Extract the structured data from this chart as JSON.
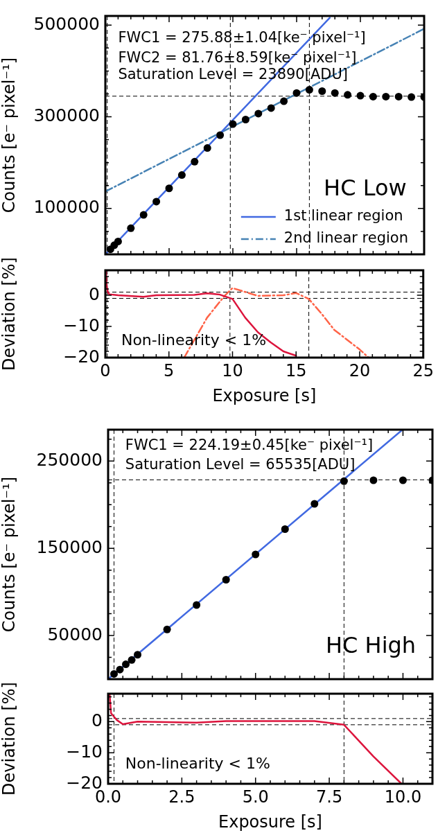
{
  "chart_data": [
    {
      "type": "scatter",
      "ylabel": "Counts [e⁻ pixel⁻¹]",
      "xlim": [
        0,
        25
      ],
      "ylim": [
        0,
        520000
      ],
      "tick_labels": "y",
      "legend": "bottom right",
      "xticks": [
        0,
        {
          "value": 1,
          "label": null
        },
        {
          "value": 2,
          "label": null
        },
        {
          "value": 3,
          "label": null
        },
        {
          "value": 4,
          "label": null
        },
        5,
        {
          "value": 6,
          "label": null
        },
        {
          "value": 7,
          "label": null
        },
        {
          "value": 8,
          "label": null
        },
        {
          "value": 9,
          "label": null
        },
        10,
        {
          "value": 11,
          "label": null
        },
        {
          "value": 12,
          "label": null
        },
        {
          "value": 13,
          "label": null
        },
        {
          "value": 14,
          "label": null
        },
        15,
        {
          "value": 16,
          "label": null
        },
        {
          "value": 17,
          "label": null
        },
        {
          "value": 18,
          "label": null
        },
        {
          "value": 19,
          "label": null
        },
        20,
        {
          "value": 21,
          "label": null
        },
        {
          "value": 22,
          "label": null
        },
        {
          "value": 23,
          "label": null
        },
        {
          "value": 24,
          "label": null
        },
        25
      ],
      "yticks": [
        {
          "value": 50000,
          "label": null
        },
        100000,
        {
          "value": 150000,
          "label": null
        },
        {
          "value": 200000,
          "label": null
        },
        {
          "value": 250000,
          "label": null
        },
        300000,
        {
          "value": 350000,
          "label": null
        },
        {
          "value": 400000,
          "label": null
        },
        {
          "value": 450000,
          "label": null
        },
        500000
      ],
      "series": [
        {
          "marker": "circle",
          "color": "#000000",
          "x": [
            0.4,
            0.7,
            1,
            2,
            3,
            4,
            5,
            6,
            7,
            8,
            9,
            10,
            11,
            12,
            13,
            14,
            15,
            16,
            17,
            18,
            19,
            20,
            21,
            22,
            23,
            24,
            25
          ],
          "values": [
            11000,
            20000,
            28000,
            57000,
            86000,
            115000,
            144000,
            173000,
            202000,
            232000,
            260000,
            284000,
            294000,
            307000,
            319000,
            334000,
            352000,
            359000,
            356000,
            352000,
            348000,
            346000,
            344000,
            344000,
            344000,
            343000,
            343000
          ]
        },
        {
          "type": "line",
          "name": "1st linear region",
          "marker": "none",
          "line_style": "solid",
          "color": "#4169e1",
          "x": [
            0,
            17.6
          ],
          "values": [
            0,
            516000
          ]
        },
        {
          "type": "line",
          "name": "2nd linear region",
          "marker": "none",
          "line_style": "dashdot",
          "color": "#4682b4",
          "x": [
            0,
            25
          ],
          "values": [
            137000,
            492000
          ]
        }
      ],
      "ref_lines": [
        {
          "axis": "x",
          "value": 0.15,
          "color": "#000000",
          "line_style": "dashed"
        },
        {
          "axis": "x",
          "value": 9.8,
          "color": "#000000",
          "line_style": "dashed"
        },
        {
          "axis": "x",
          "value": 16,
          "color": "#000000",
          "line_style": "dashed"
        },
        {
          "axis": "y",
          "value": 345000,
          "color": "#000000",
          "line_style": "dashed"
        }
      ],
      "annotations": [
        "FWC1 = 275.88±1.04[ke⁻ pixel⁻¹]",
        "FWC2 = 81.76±8.59[ke⁻ pixel⁻¹]",
        "Saturation Level = 23890[ADU]",
        "HC Low"
      ]
    },
    {
      "type": "line",
      "xlabel": "Exposure [s]",
      "ylabel": "Deviation [%]",
      "xlim": [
        0,
        25
      ],
      "ylim": [
        -20,
        8
      ],
      "xticks": [
        0,
        {
          "value": 1,
          "label": null
        },
        {
          "value": 2,
          "label": null
        },
        {
          "value": 3,
          "label": null
        },
        {
          "value": 4,
          "label": null
        },
        5,
        {
          "value": 6,
          "label": null
        },
        {
          "value": 7,
          "label": null
        },
        {
          "value": 8,
          "label": null
        },
        {
          "value": 9,
          "label": null
        },
        10,
        {
          "value": 11,
          "label": null
        },
        {
          "value": 12,
          "label": null
        },
        {
          "value": 13,
          "label": null
        },
        {
          "value": 14,
          "label": null
        },
        15,
        {
          "value": 16,
          "label": null
        },
        {
          "value": 17,
          "label": null
        },
        {
          "value": 18,
          "label": null
        },
        {
          "value": 19,
          "label": null
        },
        20,
        {
          "value": 21,
          "label": null
        },
        {
          "value": 22,
          "label": null
        },
        {
          "value": 23,
          "label": null
        },
        {
          "value": 24,
          "label": null
        },
        25
      ],
      "yticks": [
        {
          "value": -20,
          "label": "−20"
        },
        {
          "value": -18,
          "label": null
        },
        {
          "value": -16,
          "label": null
        },
        {
          "value": -14,
          "label": null
        },
        {
          "value": -12,
          "label": null
        },
        {
          "value": -10,
          "label": "−10"
        },
        {
          "value": -8,
          "label": null
        },
        {
          "value": -6,
          "label": null
        },
        {
          "value": -4,
          "label": null
        },
        {
          "value": -2,
          "label": null
        },
        0,
        {
          "value": 2,
          "label": null
        },
        {
          "value": 4,
          "label": null
        },
        {
          "value": 6,
          "label": null
        },
        {
          "value": 8,
          "label": null
        }
      ],
      "series": [
        {
          "marker": "none",
          "line_style": "solid",
          "color": "#dc143c",
          "x": [
            0.05,
            0.1,
            0.2,
            0.3,
            0.5,
            1,
            3,
            4,
            7,
            8,
            9,
            10,
            11,
            12,
            13,
            14,
            15
          ],
          "values": [
            8,
            3,
            1,
            0.3,
            0.2,
            0,
            -0.5,
            0,
            0.1,
            0.6,
            0.2,
            -1.2,
            -7.2,
            -11.9,
            -15.1,
            -18,
            -19.4
          ]
        },
        {
          "marker": "none",
          "line_style": "dashdot",
          "color": "#ff6347",
          "x": [
            6.2,
            8,
            9.35,
            10,
            12,
            14,
            15,
            16,
            17,
            18,
            20,
            20.7
          ],
          "values": [
            -20,
            -7.2,
            -0.3,
            2.3,
            -0.2,
            0,
            0.7,
            -1.2,
            -5.9,
            -11.1,
            -17.4,
            -20
          ]
        }
      ],
      "ref_lines": [
        {
          "axis": "x",
          "value": 0.15,
          "color": "#000000",
          "line_style": "dashed"
        },
        {
          "axis": "x",
          "value": 9.8,
          "color": "#000000",
          "line_style": "dashed"
        },
        {
          "axis": "x",
          "value": 16,
          "color": "#000000",
          "line_style": "dashed"
        },
        {
          "axis": "y",
          "value": 1,
          "color": "#000000",
          "line_style": "dashed"
        },
        {
          "axis": "y",
          "value": -1,
          "color": "#000000",
          "line_style": "dashed"
        }
      ],
      "annotations": [
        "Non-linearity < 1%"
      ]
    },
    {
      "type": "scatter",
      "ylabel": "Counts [e⁻ pixel⁻¹]",
      "xlim": [
        0,
        11
      ],
      "ylim": [
        0,
        286000
      ],
      "tick_labels": "y",
      "xticks": [
        0,
        {
          "value": 0.5,
          "label": null
        },
        {
          "value": 1,
          "label": null
        },
        {
          "value": 1.5,
          "label": null
        },
        {
          "value": 2,
          "label": null
        },
        2.5,
        {
          "value": 3,
          "label": null
        },
        {
          "value": 3.5,
          "label": null
        },
        {
          "value": 4,
          "label": null
        },
        {
          "value": 4.5,
          "label": null
        },
        5,
        {
          "value": 5.5,
          "label": null
        },
        {
          "value": 6,
          "label": null
        },
        {
          "value": 6.5,
          "label": null
        },
        {
          "value": 7,
          "label": null
        },
        7.5,
        {
          "value": 8,
          "label": null
        },
        {
          "value": 8.5,
          "label": null
        },
        {
          "value": 9,
          "label": null
        },
        {
          "value": 9.5,
          "label": null
        },
        10,
        {
          "value": 10.5,
          "label": null
        },
        {
          "value": 11,
          "label": null
        }
      ],
      "yticks": [
        {
          "value": 25000,
          "label": null
        },
        50000,
        {
          "value": 75000,
          "label": null
        },
        {
          "value": 100000,
          "label": null
        },
        {
          "value": 125000,
          "label": null
        },
        150000,
        {
          "value": 175000,
          "label": null
        },
        {
          "value": 200000,
          "label": null
        },
        {
          "value": 225000,
          "label": null
        },
        250000,
        {
          "value": 275000,
          "label": null
        }
      ],
      "series": [
        {
          "marker": "circle",
          "color": "#000000",
          "x": [
            0.2,
            0.4,
            0.6,
            0.8,
            1,
            2,
            3,
            4,
            5,
            6,
            7,
            8,
            9,
            10,
            11
          ],
          "values": [
            6000,
            11000,
            17000,
            22000,
            28000,
            57000,
            85000,
            114000,
            143000,
            172000,
            201000,
            227000,
            228000,
            228000,
            228000
          ]
        },
        {
          "type": "line",
          "marker": "none",
          "line_style": "solid",
          "color": "#4169e1",
          "x": [
            0,
            9.95
          ],
          "values": [
            0,
            285000
          ]
        }
      ],
      "ref_lines": [
        {
          "axis": "x",
          "value": 0.2,
          "color": "#000000",
          "line_style": "dashed"
        },
        {
          "axis": "x",
          "value": 8,
          "color": "#000000",
          "line_style": "dashed"
        },
        {
          "axis": "y",
          "value": 228500,
          "color": "#000000",
          "line_style": "dashed"
        }
      ],
      "annotations": [
        "FWC1 = 224.19±0.45[ke⁻ pixel⁻¹]",
        "Saturation Level = 65535[ADU]",
        "HC High"
      ]
    },
    {
      "type": "line",
      "xlabel": "Exposure [s]",
      "ylabel": "Deviation [%]",
      "xlim": [
        0,
        11
      ],
      "ylim": [
        -20,
        9
      ],
      "xticks": [
        {
          "value": 0,
          "label": "0.0"
        },
        {
          "value": 0.5,
          "label": null
        },
        {
          "value": 1,
          "label": null
        },
        {
          "value": 1.5,
          "label": null
        },
        {
          "value": 2,
          "label": null
        },
        {
          "value": 2.5,
          "label": "2.5"
        },
        {
          "value": 3,
          "label": null
        },
        {
          "value": 3.5,
          "label": null
        },
        {
          "value": 4,
          "label": null
        },
        {
          "value": 4.5,
          "label": null
        },
        {
          "value": 5,
          "label": "5.0"
        },
        {
          "value": 5.5,
          "label": null
        },
        {
          "value": 6,
          "label": null
        },
        {
          "value": 6.5,
          "label": null
        },
        {
          "value": 7,
          "label": null
        },
        {
          "value": 7.5,
          "label": "7.5"
        },
        {
          "value": 8,
          "label": null
        },
        {
          "value": 8.5,
          "label": null
        },
        {
          "value": 9,
          "label": null
        },
        {
          "value": 9.5,
          "label": null
        },
        {
          "value": 10,
          "label": "10.0"
        },
        {
          "value": 10.5,
          "label": null
        },
        {
          "value": 11,
          "label": null
        }
      ],
      "yticks": [
        {
          "value": -20,
          "label": "−20"
        },
        {
          "value": -18,
          "label": null
        },
        {
          "value": -16,
          "label": null
        },
        {
          "value": -14,
          "label": null
        },
        {
          "value": -12,
          "label": null
        },
        {
          "value": -10,
          "label": "−10"
        },
        {
          "value": -8,
          "label": null
        },
        {
          "value": -6,
          "label": null
        },
        {
          "value": -4,
          "label": null
        },
        {
          "value": -2,
          "label": null
        },
        0,
        {
          "value": 2,
          "label": null
        },
        {
          "value": 4,
          "label": null
        },
        {
          "value": 6,
          "label": null
        },
        {
          "value": 8,
          "label": null
        }
      ],
      "series": [
        {
          "marker": "none",
          "line_style": "solid",
          "color": "#dc143c",
          "x": [
            0.05,
            0.1,
            0.3,
            0.5,
            1,
            3,
            4,
            7,
            8,
            9,
            9.95
          ],
          "values": [
            9,
            2.7,
            0.5,
            -0.8,
            0,
            -0.3,
            0.2,
            0.2,
            -1,
            -11.2,
            -20
          ]
        }
      ],
      "ref_lines": [
        {
          "axis": "x",
          "value": 0.2,
          "color": "#000000",
          "line_style": "dashed"
        },
        {
          "axis": "x",
          "value": 8,
          "color": "#000000",
          "line_style": "dashed"
        },
        {
          "axis": "y",
          "value": 1,
          "color": "#000000",
          "line_style": "dashed"
        },
        {
          "axis": "y",
          "value": -1,
          "color": "#000000",
          "line_style": "dashed"
        }
      ],
      "annotations": [
        "Non-linearity < 1%"
      ]
    }
  ]
}
